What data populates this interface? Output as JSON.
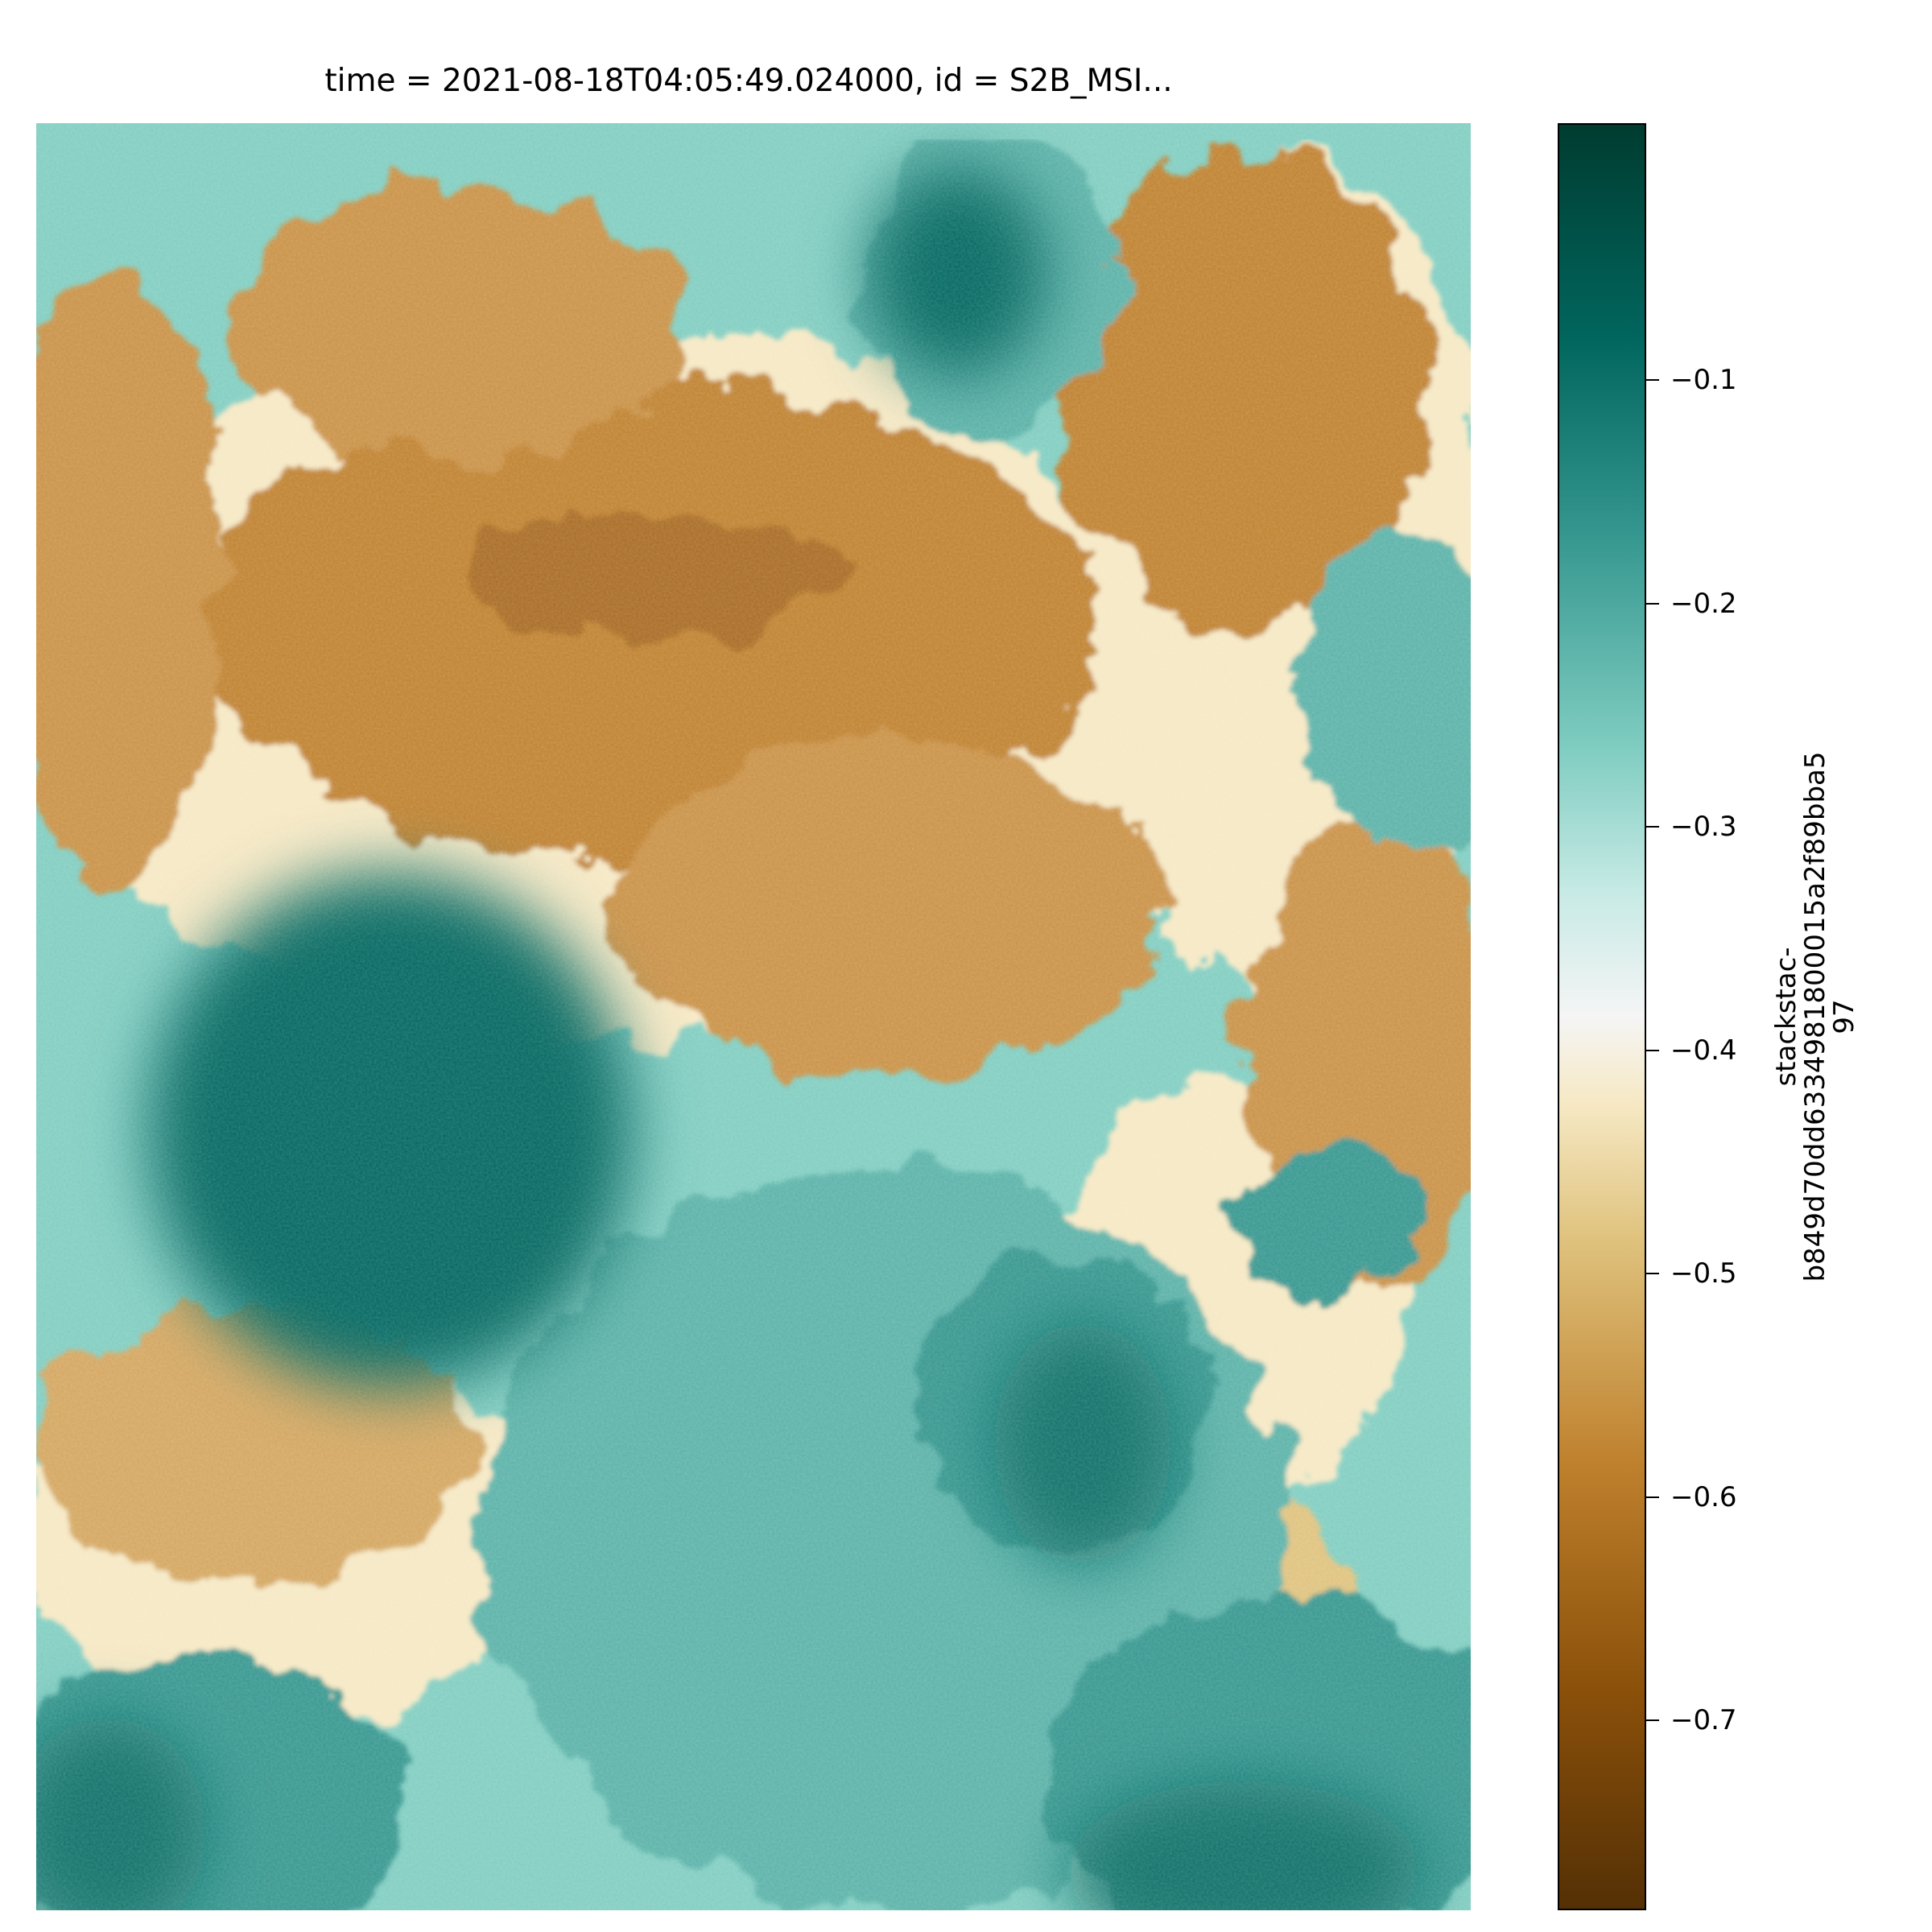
{
  "chart_data": {
    "type": "heatmap",
    "title": "time = 2021-08-18T04:05:49.024000, id = S2B_MSI...",
    "colorbar": {
      "label_line1": "stackstac-",
      "label_line2": "b849d70dd6334981800015a2f89bba5",
      "label_line3": "97",
      "ticks": [
        -0.1,
        -0.2,
        -0.3,
        -0.4,
        -0.5,
        -0.6,
        -0.7
      ],
      "tick_labels": [
        "−0.1",
        "−0.2",
        "−0.3",
        "−0.4",
        "−0.5",
        "−0.6",
        "−0.7"
      ],
      "range": [
        -0.785,
        0.015
      ],
      "colormap": "BrBG"
    },
    "colors": {
      "teal_dark": "#01665e",
      "teal_mid": "#35978f",
      "teal_light": "#80cdc1",
      "neutral": "#f5f5f5",
      "tan_light": "#dfc27d",
      "brown_mid": "#bf812d",
      "brown_dark": "#8c510a"
    }
  }
}
